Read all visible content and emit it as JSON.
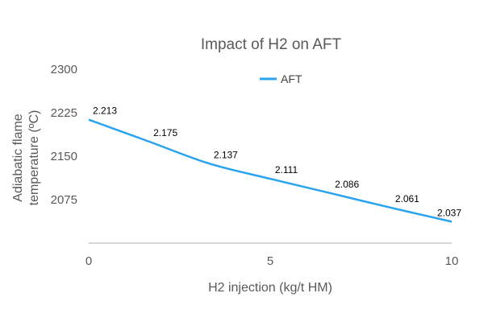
{
  "chart_data": {
    "type": "line",
    "title": "Impact of H2 on AFT",
    "xlabel": "H2 injection (kg/t HM)",
    "ylabel": [
      "Adiabatic flame",
      "temperature (ºC)"
    ],
    "xlim": [
      0,
      10
    ],
    "ylim": [
      2000,
      2300
    ],
    "x_ticks": [
      0,
      5,
      10
    ],
    "y_ticks": [
      2075,
      2150,
      2225,
      2300
    ],
    "grid": false,
    "legend": "top-center",
    "series": [
      {
        "name": "AFT",
        "color": "#2aa3ef",
        "x": [
          0,
          1.67,
          3.33,
          5,
          6.67,
          8.33,
          10
        ],
        "values": [
          2213,
          2175,
          2137,
          2111,
          2086,
          2061,
          2037
        ],
        "labels": [
          "2.213",
          "2.175",
          "2.137",
          "2.111",
          "2.086",
          "2.061",
          "2.037"
        ]
      }
    ]
  }
}
